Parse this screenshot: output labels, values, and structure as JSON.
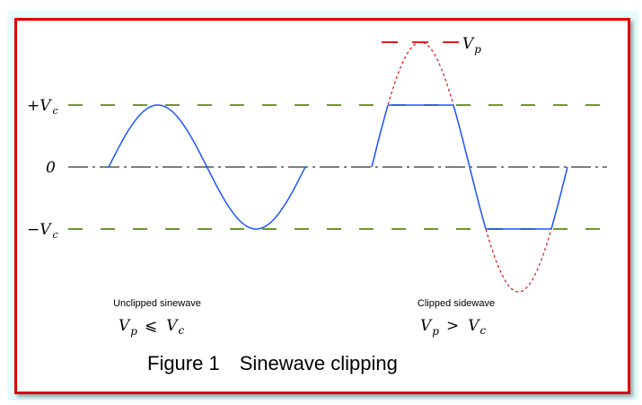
{
  "figure": {
    "caption_number": "Figure 1",
    "caption_title": "Sinewave clipping"
  },
  "axis_labels": {
    "plus_vc_sign": "+",
    "minus_vc_sign": "−",
    "v": "V",
    "c": "c",
    "p": "p",
    "zero": "0"
  },
  "left_panel": {
    "label": "Unclipped sinewave",
    "relation": "⩽"
  },
  "right_panel": {
    "label": "Clipped sidewave",
    "relation": ">"
  },
  "colors": {
    "border": "#e00000",
    "wave": "#1a56ff",
    "clip_level": "#6a9a2a",
    "peak": "#e02020",
    "axis": "#333333"
  }
}
